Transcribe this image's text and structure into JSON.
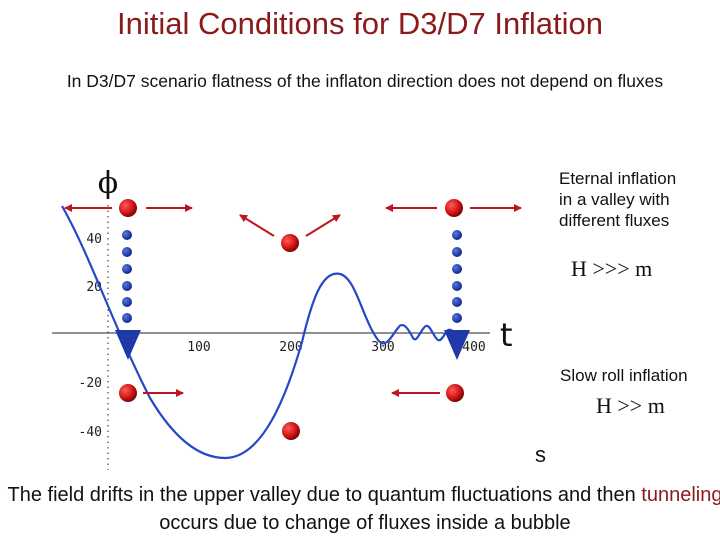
{
  "title": "Initial Conditions for D3/D7 Inflation",
  "subtitle": "In D3/D7 scenario flatness of the inflaton direction does not depend on fluxes",
  "plot": {
    "phi_label": "ϕ",
    "t_label": "t",
    "s_label": "s",
    "y_ticks": [
      "40",
      "20",
      "-20",
      "-40"
    ],
    "x_ticks": [
      "100",
      "200",
      "300",
      "400"
    ],
    "colors": {
      "curve": "#2448c8",
      "ball": "#cc1111",
      "dot": "#1f3aa8",
      "arrow": "#c0141e",
      "axis": "#222222"
    }
  },
  "annotations": {
    "eternal": [
      "Eternal inflation",
      "in a valley with",
      "different fluxes"
    ],
    "h_eternal": "H >>> m",
    "slow_roll": "Slow roll inflation",
    "h_slow": "H >> m"
  },
  "bottom": {
    "part1": "The field drifts in the upper valley due to quantum fluctuations and then",
    "highlight": "tunneling",
    "part2": "occurs due to change of fluxes inside a bubble"
  }
}
